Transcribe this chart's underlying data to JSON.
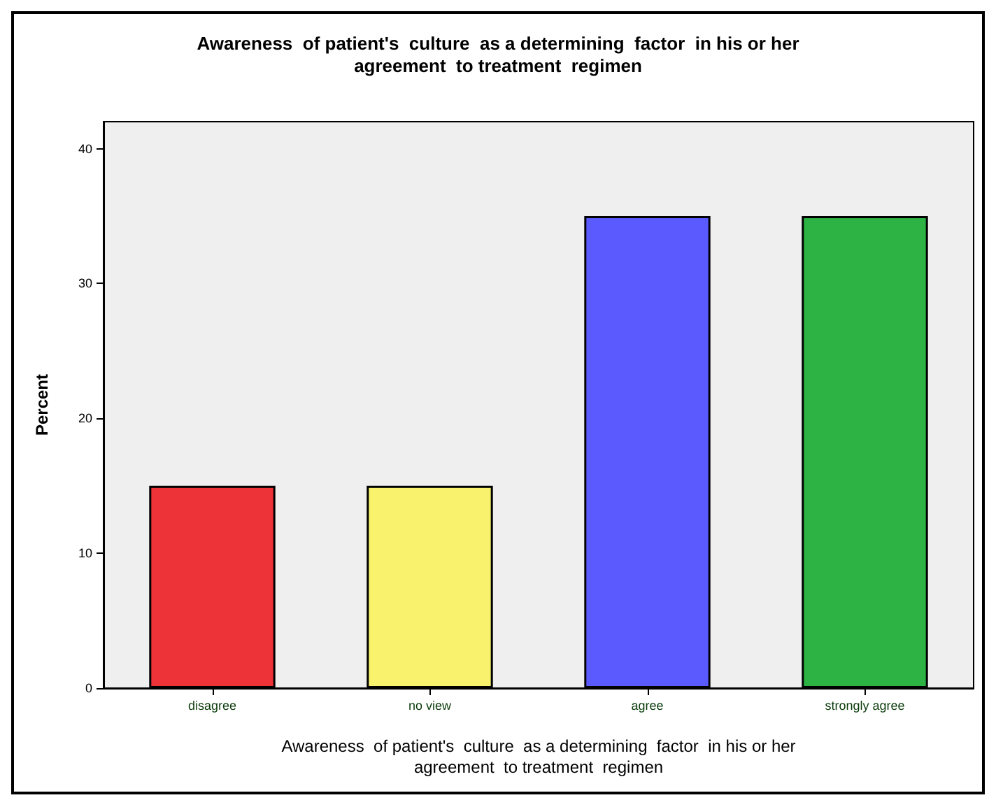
{
  "chart_data": {
    "type": "bar",
    "title": "Awareness  of patient's  culture  as a determining  factor  in his or her\nagreement  to treatment  regimen",
    "xlabel": "Awareness  of patient's  culture  as a determining  factor  in his or her\nagreement  to treatment  regimen",
    "ylabel": "Percent",
    "categories": [
      "disagree",
      "no view",
      "agree",
      "strongly agree"
    ],
    "values": [
      15,
      15,
      35,
      35
    ],
    "colors": [
      "#ee3338",
      "#f8f26c",
      "#5a5afe",
      "#2db344"
    ],
    "ylim": [
      0,
      42
    ],
    "yticks": [
      0,
      10,
      20,
      30,
      40
    ],
    "grid": false
  }
}
